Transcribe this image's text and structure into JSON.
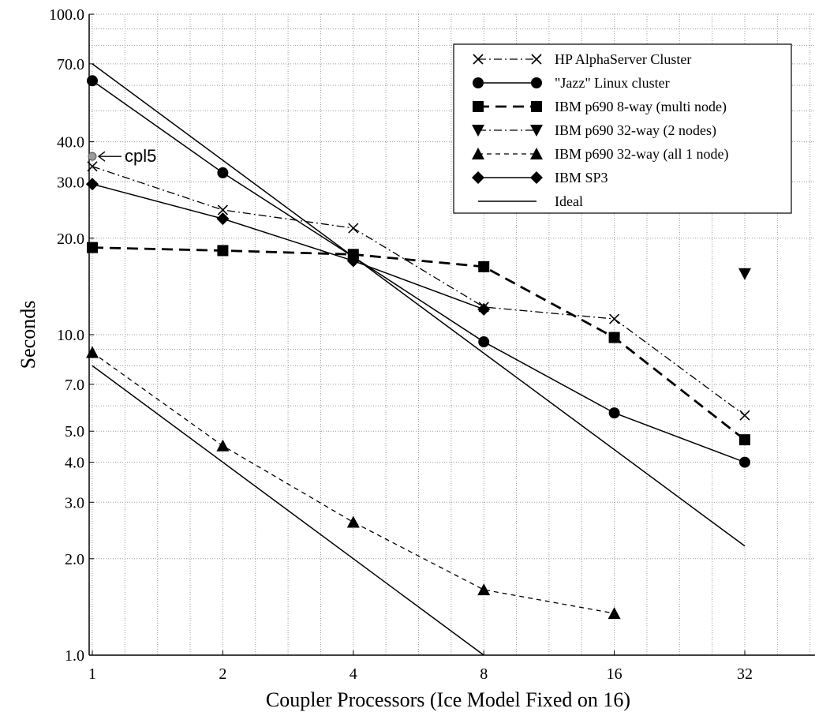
{
  "chart_data": {
    "type": "line",
    "xlabel": "Coupler Processors (Ice Model Fixed on 16)",
    "ylabel": "Seconds",
    "x_scale": "log2",
    "y_scale": "log10",
    "xlim": [
      1,
      45
    ],
    "ylim": [
      1,
      100
    ],
    "x_ticks": [
      1,
      2,
      4,
      8,
      16,
      32
    ],
    "y_ticks": [
      1.0,
      2.0,
      3.0,
      4.0,
      5.0,
      7.0,
      10.0,
      20.0,
      30.0,
      40.0,
      70.0,
      100.0
    ],
    "x_tick_labels": [
      "1",
      "2",
      "4",
      "8",
      "16",
      "32"
    ],
    "y_tick_labels": [
      "1.0",
      "2.0",
      "3.0",
      "4.0",
      "5.0",
      "7.0",
      "10.0",
      "20.0",
      "30.0",
      "40.0",
      "70.0",
      "100.0"
    ],
    "grid": true,
    "legend_position": "top-right",
    "series": [
      {
        "name": "HP AlphaServer Cluster",
        "marker": "x",
        "line": "dashdot",
        "x": [
          1,
          2,
          4,
          8,
          16,
          32
        ],
        "y": [
          33.5,
          24.5,
          21.5,
          12.2,
          11.2,
          5.6
        ]
      },
      {
        "name": "\"Jazz\" Linux cluster",
        "marker": "circle",
        "line": "solid",
        "x": [
          1,
          2,
          4,
          8,
          16,
          32
        ],
        "y": [
          62,
          32,
          17.5,
          9.5,
          5.7,
          4.0
        ]
      },
      {
        "name": "IBM p690 8-way (multi node)",
        "marker": "square",
        "line": "dashed-bold",
        "x": [
          1,
          2,
          4,
          8,
          16,
          32
        ],
        "y": [
          18.7,
          18.3,
          17.8,
          16.3,
          9.8,
          4.7
        ]
      },
      {
        "name": "IBM p690 32-way (2 nodes)",
        "marker": "triangle-down",
        "line": "dashdot",
        "x": [
          32
        ],
        "y": [
          15.5
        ]
      },
      {
        "name": "IBM p690 32-way (all 1 node)",
        "marker": "triangle-up",
        "line": "dashed",
        "x": [
          1,
          2,
          4,
          8,
          16
        ],
        "y": [
          8.8,
          4.5,
          2.6,
          1.6,
          1.35
        ]
      },
      {
        "name": "IBM SP3",
        "marker": "diamond",
        "line": "solid",
        "x": [
          1,
          2,
          4,
          8
        ],
        "y": [
          29.5,
          23,
          17,
          12
        ]
      },
      {
        "name": "Ideal",
        "marker": "none",
        "line": "solid",
        "segments": [
          {
            "x": [
              1,
              32
            ],
            "y": [
              70,
              2.19
            ]
          },
          {
            "x": [
              1,
              8
            ],
            "y": [
              8,
              1.0
            ]
          }
        ]
      }
    ],
    "annotations": [
      {
        "text": "cpl5",
        "x": 1,
        "y": 36,
        "marker": "grey-dot",
        "arrow": "left"
      }
    ]
  }
}
